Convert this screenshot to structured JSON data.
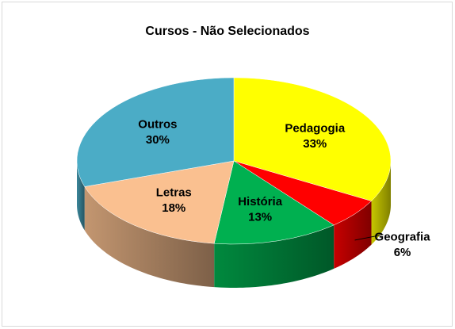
{
  "chart_data": {
    "type": "pie",
    "title": "Cursos - Não Selecionados",
    "categories": [
      "Pedagogia",
      "Geografia",
      "História",
      "Letras",
      "Outros"
    ],
    "values": [
      33,
      6,
      13,
      18,
      30
    ],
    "value_labels": [
      "33%",
      "6%",
      "13%",
      "18%",
      "30%"
    ],
    "colors": [
      "#ffff00",
      "#ff0000",
      "#00b050",
      "#fac090",
      "#4bacc6"
    ]
  }
}
